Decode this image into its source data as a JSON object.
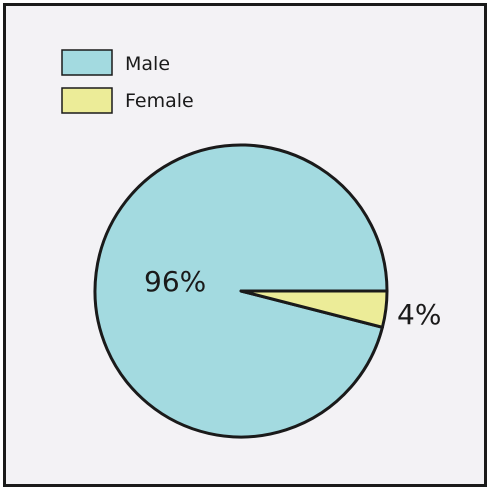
{
  "chart_data": {
    "type": "pie",
    "title": "",
    "categories": [
      "Male",
      "Female"
    ],
    "values": [
      96,
      4
    ],
    "data_labels": [
      "96%",
      "4%"
    ],
    "colors": [
      "#a3dae0",
      "#ecec98"
    ],
    "legend": {
      "placement": "top-left",
      "entries": [
        "Male",
        "Female"
      ]
    }
  }
}
